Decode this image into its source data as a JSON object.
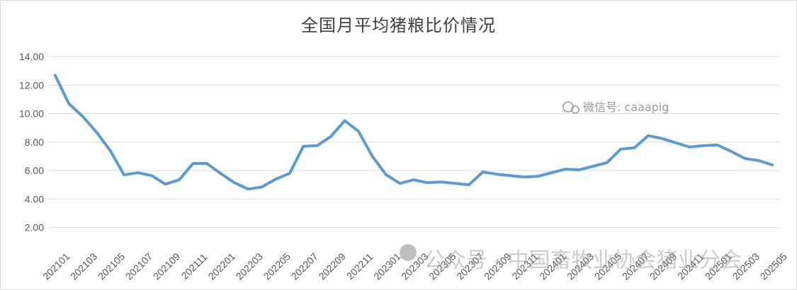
{
  "chart_data": {
    "type": "line",
    "title": "全国月平均猪粮比价情况",
    "xlabel": "",
    "ylabel": "",
    "ylim": [
      0,
      14
    ],
    "yticks": [
      "2.00",
      "4.00",
      "6.00",
      "8.00",
      "10.00",
      "12.00",
      "14.00"
    ],
    "grid": true,
    "legend": "none",
    "line_color": "#5b9bd5",
    "x": [
      "202101",
      "202102",
      "202103",
      "202104",
      "202105",
      "202106",
      "202107",
      "202108",
      "202109",
      "202110",
      "202111",
      "202112",
      "202201",
      "202202",
      "202203",
      "202204",
      "202205",
      "202206",
      "202207",
      "202208",
      "202209",
      "202210",
      "202211",
      "202212",
      "202301",
      "202302",
      "202303",
      "202304",
      "202305",
      "202306",
      "202307",
      "202308",
      "202309",
      "202310",
      "202311",
      "202312",
      "202401",
      "202402",
      "202403",
      "202404",
      "202405",
      "202406",
      "202407",
      "202408",
      "202409",
      "202410",
      "202411",
      "202412",
      "202501",
      "202502",
      "202503",
      "202504",
      "202505"
    ],
    "x_tick_labels": [
      "202101",
      "202103",
      "202105",
      "202107",
      "202109",
      "202111",
      "202201",
      "202203",
      "202205",
      "202207",
      "202209",
      "202211",
      "202301",
      "202303",
      "202305",
      "202307",
      "202309",
      "202311",
      "202401",
      "202403",
      "202405",
      "202407",
      "202409",
      "202411",
      "202501",
      "202503",
      "202505"
    ],
    "series": [
      {
        "values": [
          12.7,
          10.7,
          9.8,
          8.7,
          7.4,
          5.7,
          5.85,
          5.65,
          5.05,
          5.35,
          6.5,
          6.5,
          5.8,
          5.15,
          4.7,
          4.85,
          5.4,
          5.8,
          7.7,
          7.75,
          8.4,
          9.5,
          8.75,
          7.0,
          5.7,
          5.1,
          5.35,
          5.15,
          5.2,
          5.1,
          5.0,
          5.9,
          5.75,
          5.65,
          5.55,
          5.6,
          5.85,
          6.1,
          6.05,
          6.3,
          6.55,
          7.5,
          7.6,
          8.45,
          8.25,
          7.95,
          7.65,
          7.75,
          7.8,
          7.35,
          6.85,
          6.7,
          6.4
        ]
      }
    ]
  },
  "watermarks": {
    "wechat": "微信号: caaapig",
    "gongzhonghao": "公众号 · 中国畜牧业协会猪业分会"
  }
}
